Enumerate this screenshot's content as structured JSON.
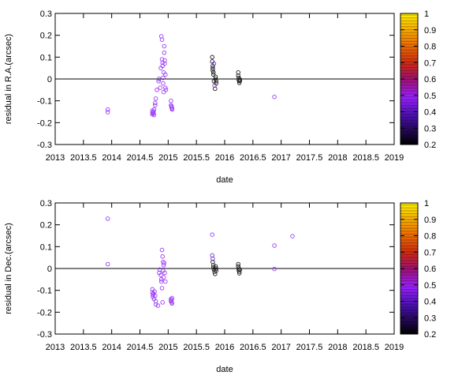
{
  "chart_data": [
    {
      "type": "scatter",
      "xlabel": "date",
      "ylabel": "residual in R.A.(arcsec)",
      "xlim": [
        2013,
        2019
      ],
      "ylim": [
        -0.3,
        0.3
      ],
      "xticks": [
        "2013",
        "2013.5",
        "2014",
        "2014.5",
        "2015",
        "2015.5",
        "2016",
        "2016.5",
        "2017",
        "2017.5",
        "2018",
        "2018.5",
        "2019"
      ],
      "yticks": [
        "-0.3",
        "-0.2",
        "-0.1",
        "0",
        "0.1",
        "0.2",
        "0.3"
      ],
      "zero_line": true,
      "colorbar": {
        "ticks": [
          "0.2",
          "0.3",
          "0.4",
          "0.5",
          "0.6",
          "0.7",
          "0.8",
          "0.9",
          "1"
        ]
      },
      "points": [
        {
          "x": 2013.93,
          "y": -0.14,
          "c": 0.5
        },
        {
          "x": 2013.93,
          "y": -0.152,
          "c": 0.5
        },
        {
          "x": 2014.72,
          "y": -0.145,
          "c": 0.45
        },
        {
          "x": 2014.72,
          "y": -0.155,
          "c": 0.45
        },
        {
          "x": 2014.72,
          "y": -0.162,
          "c": 0.45
        },
        {
          "x": 2014.74,
          "y": -0.15,
          "c": 0.45
        },
        {
          "x": 2014.74,
          "y": -0.158,
          "c": 0.45
        },
        {
          "x": 2014.75,
          "y": -0.14,
          "c": 0.45
        },
        {
          "x": 2014.75,
          "y": -0.165,
          "c": 0.45
        },
        {
          "x": 2014.77,
          "y": -0.12,
          "c": 0.48
        },
        {
          "x": 2014.77,
          "y": -0.11,
          "c": 0.48
        },
        {
          "x": 2014.78,
          "y": -0.09,
          "c": 0.48
        },
        {
          "x": 2014.8,
          "y": -0.05,
          "c": 0.5
        },
        {
          "x": 2014.83,
          "y": -0.01,
          "c": 0.5
        },
        {
          "x": 2014.84,
          "y": 0.0,
          "c": 0.35
        },
        {
          "x": 2014.86,
          "y": -0.04,
          "c": 0.5
        },
        {
          "x": 2014.87,
          "y": 0.05,
          "c": 0.5
        },
        {
          "x": 2014.88,
          "y": 0.195,
          "c": 0.5
        },
        {
          "x": 2014.89,
          "y": 0.18,
          "c": 0.5
        },
        {
          "x": 2014.89,
          "y": 0.09,
          "c": 0.5
        },
        {
          "x": 2014.9,
          "y": 0.075,
          "c": 0.5
        },
        {
          "x": 2014.9,
          "y": 0.06,
          "c": 0.5
        },
        {
          "x": 2014.91,
          "y": 0.005,
          "c": 0.5
        },
        {
          "x": 2014.91,
          "y": -0.02,
          "c": 0.5
        },
        {
          "x": 2014.92,
          "y": 0.03,
          "c": 0.5
        },
        {
          "x": 2014.92,
          "y": -0.06,
          "c": 0.5
        },
        {
          "x": 2014.93,
          "y": 0.15,
          "c": 0.5
        },
        {
          "x": 2014.93,
          "y": 0.12,
          "c": 0.5
        },
        {
          "x": 2014.94,
          "y": 0.085,
          "c": 0.5
        },
        {
          "x": 2014.94,
          "y": 0.07,
          "c": 0.5
        },
        {
          "x": 2014.95,
          "y": 0.02,
          "c": 0.5
        },
        {
          "x": 2014.95,
          "y": -0.04,
          "c": 0.5
        },
        {
          "x": 2014.96,
          "y": -0.05,
          "c": 0.5
        },
        {
          "x": 2015.05,
          "y": -0.1,
          "c": 0.5
        },
        {
          "x": 2015.05,
          "y": -0.12,
          "c": 0.5
        },
        {
          "x": 2015.06,
          "y": -0.125,
          "c": 0.5
        },
        {
          "x": 2015.06,
          "y": -0.13,
          "c": 0.5
        },
        {
          "x": 2015.07,
          "y": -0.135,
          "c": 0.5
        },
        {
          "x": 2015.07,
          "y": -0.14,
          "c": 0.5
        },
        {
          "x": 2015.78,
          "y": 0.1,
          "c": 0.25
        },
        {
          "x": 2015.78,
          "y": 0.08,
          "c": 0.25
        },
        {
          "x": 2015.79,
          "y": 0.06,
          "c": 0.25
        },
        {
          "x": 2015.79,
          "y": 0.05,
          "c": 0.25
        },
        {
          "x": 2015.79,
          "y": 0.04,
          "c": 0.25
        },
        {
          "x": 2015.8,
          "y": 0.03,
          "c": 0.25
        },
        {
          "x": 2015.8,
          "y": 0.02,
          "c": 0.25
        },
        {
          "x": 2015.81,
          "y": 0.07,
          "c": 0.4
        },
        {
          "x": 2015.81,
          "y": -0.01,
          "c": 0.25
        },
        {
          "x": 2015.82,
          "y": -0.03,
          "c": 0.5
        },
        {
          "x": 2015.83,
          "y": -0.045,
          "c": 0.25
        },
        {
          "x": 2015.84,
          "y": 0.01,
          "c": 0.25
        },
        {
          "x": 2015.84,
          "y": 0.0,
          "c": 0.25
        },
        {
          "x": 2015.85,
          "y": -0.01,
          "c": 0.25
        },
        {
          "x": 2015.85,
          "y": -0.02,
          "c": 0.25
        },
        {
          "x": 2016.24,
          "y": 0.03,
          "c": 0.25
        },
        {
          "x": 2016.24,
          "y": 0.015,
          "c": 0.25
        },
        {
          "x": 2016.25,
          "y": 0.005,
          "c": 0.25
        },
        {
          "x": 2016.25,
          "y": -0.005,
          "c": 0.25
        },
        {
          "x": 2016.26,
          "y": -0.01,
          "c": 0.25
        },
        {
          "x": 2016.26,
          "y": -0.018,
          "c": 0.25
        },
        {
          "x": 2016.27,
          "y": -0.008,
          "c": 0.25
        },
        {
          "x": 2016.27,
          "y": -0.002,
          "c": 0.25
        },
        {
          "x": 2016.88,
          "y": -0.082,
          "c": 0.5
        }
      ]
    },
    {
      "type": "scatter",
      "xlabel": "date",
      "ylabel": "residual in Dec.(arcsec)",
      "xlim": [
        2013,
        2019
      ],
      "ylim": [
        -0.3,
        0.3
      ],
      "xticks": [
        "2013",
        "2013.5",
        "2014",
        "2014.5",
        "2015",
        "2015.5",
        "2016",
        "2016.5",
        "2017",
        "2017.5",
        "2018",
        "2018.5",
        "2019"
      ],
      "yticks": [
        "-0.3",
        "-0.2",
        "-0.1",
        "0",
        "0.1",
        "0.2",
        "0.3"
      ],
      "zero_line": true,
      "colorbar": {
        "ticks": [
          "0.2",
          "0.3",
          "0.4",
          "0.5",
          "0.6",
          "0.7",
          "0.8",
          "0.9",
          "1"
        ]
      },
      "points": [
        {
          "x": 2013.93,
          "y": 0.228,
          "c": 0.5
        },
        {
          "x": 2013.93,
          "y": 0.02,
          "c": 0.5
        },
        {
          "x": 2014.72,
          "y": -0.095,
          "c": 0.45
        },
        {
          "x": 2014.72,
          "y": -0.11,
          "c": 0.45
        },
        {
          "x": 2014.73,
          "y": -0.12,
          "c": 0.45
        },
        {
          "x": 2014.73,
          "y": -0.13,
          "c": 0.45
        },
        {
          "x": 2014.74,
          "y": -0.115,
          "c": 0.45
        },
        {
          "x": 2014.75,
          "y": -0.14,
          "c": 0.45
        },
        {
          "x": 2014.76,
          "y": -0.105,
          "c": 0.45
        },
        {
          "x": 2014.77,
          "y": -0.125,
          "c": 0.48
        },
        {
          "x": 2014.78,
          "y": -0.15,
          "c": 0.48
        },
        {
          "x": 2014.78,
          "y": -0.165,
          "c": 0.48
        },
        {
          "x": 2014.82,
          "y": -0.17,
          "c": 0.5
        },
        {
          "x": 2014.84,
          "y": -0.02,
          "c": 0.5
        },
        {
          "x": 2014.85,
          "y": -0.005,
          "c": 0.5
        },
        {
          "x": 2014.87,
          "y": -0.03,
          "c": 0.5
        },
        {
          "x": 2014.88,
          "y": -0.05,
          "c": 0.5
        },
        {
          "x": 2014.88,
          "y": -0.06,
          "c": 0.5
        },
        {
          "x": 2014.89,
          "y": 0.085,
          "c": 0.5
        },
        {
          "x": 2014.89,
          "y": -0.09,
          "c": 0.5
        },
        {
          "x": 2014.9,
          "y": 0.055,
          "c": 0.5
        },
        {
          "x": 2014.9,
          "y": -0.155,
          "c": 0.5
        },
        {
          "x": 2014.91,
          "y": 0.03,
          "c": 0.5
        },
        {
          "x": 2014.91,
          "y": -0.01,
          "c": 0.5
        },
        {
          "x": 2014.92,
          "y": 0.015,
          "c": 0.5
        },
        {
          "x": 2014.92,
          "y": -0.04,
          "c": 0.5
        },
        {
          "x": 2014.93,
          "y": 0.025,
          "c": 0.5
        },
        {
          "x": 2014.94,
          "y": -0.02,
          "c": 0.5
        },
        {
          "x": 2014.95,
          "y": -0.06,
          "c": 0.5
        },
        {
          "x": 2015.05,
          "y": -0.14,
          "c": 0.5
        },
        {
          "x": 2015.05,
          "y": -0.15,
          "c": 0.5
        },
        {
          "x": 2015.06,
          "y": -0.145,
          "c": 0.5
        },
        {
          "x": 2015.06,
          "y": -0.155,
          "c": 0.5
        },
        {
          "x": 2015.07,
          "y": -0.16,
          "c": 0.5
        },
        {
          "x": 2015.07,
          "y": -0.135,
          "c": 0.5
        },
        {
          "x": 2015.78,
          "y": 0.155,
          "c": 0.5
        },
        {
          "x": 2015.78,
          "y": 0.06,
          "c": 0.4
        },
        {
          "x": 2015.79,
          "y": 0.045,
          "c": 0.4
        },
        {
          "x": 2015.79,
          "y": 0.03,
          "c": 0.25
        },
        {
          "x": 2015.8,
          "y": 0.015,
          "c": 0.25
        },
        {
          "x": 2015.8,
          "y": 0.005,
          "c": 0.25
        },
        {
          "x": 2015.81,
          "y": -0.005,
          "c": 0.25
        },
        {
          "x": 2015.82,
          "y": -0.015,
          "c": 0.25
        },
        {
          "x": 2015.83,
          "y": -0.025,
          "c": 0.25
        },
        {
          "x": 2015.84,
          "y": 0.01,
          "c": 0.25
        },
        {
          "x": 2015.85,
          "y": 0.0,
          "c": 0.25
        },
        {
          "x": 2015.85,
          "y": -0.01,
          "c": 0.25
        },
        {
          "x": 2016.24,
          "y": 0.02,
          "c": 0.25
        },
        {
          "x": 2016.24,
          "y": 0.01,
          "c": 0.25
        },
        {
          "x": 2016.25,
          "y": 0.0,
          "c": 0.25
        },
        {
          "x": 2016.25,
          "y": -0.008,
          "c": 0.25
        },
        {
          "x": 2016.26,
          "y": -0.015,
          "c": 0.25
        },
        {
          "x": 2016.26,
          "y": -0.022,
          "c": 0.25
        },
        {
          "x": 2016.27,
          "y": -0.005,
          "c": 0.25
        },
        {
          "x": 2016.88,
          "y": 0.105,
          "c": 0.5
        },
        {
          "x": 2016.88,
          "y": -0.002,
          "c": 0.5
        },
        {
          "x": 2017.2,
          "y": 0.148,
          "c": 0.5
        }
      ]
    }
  ]
}
